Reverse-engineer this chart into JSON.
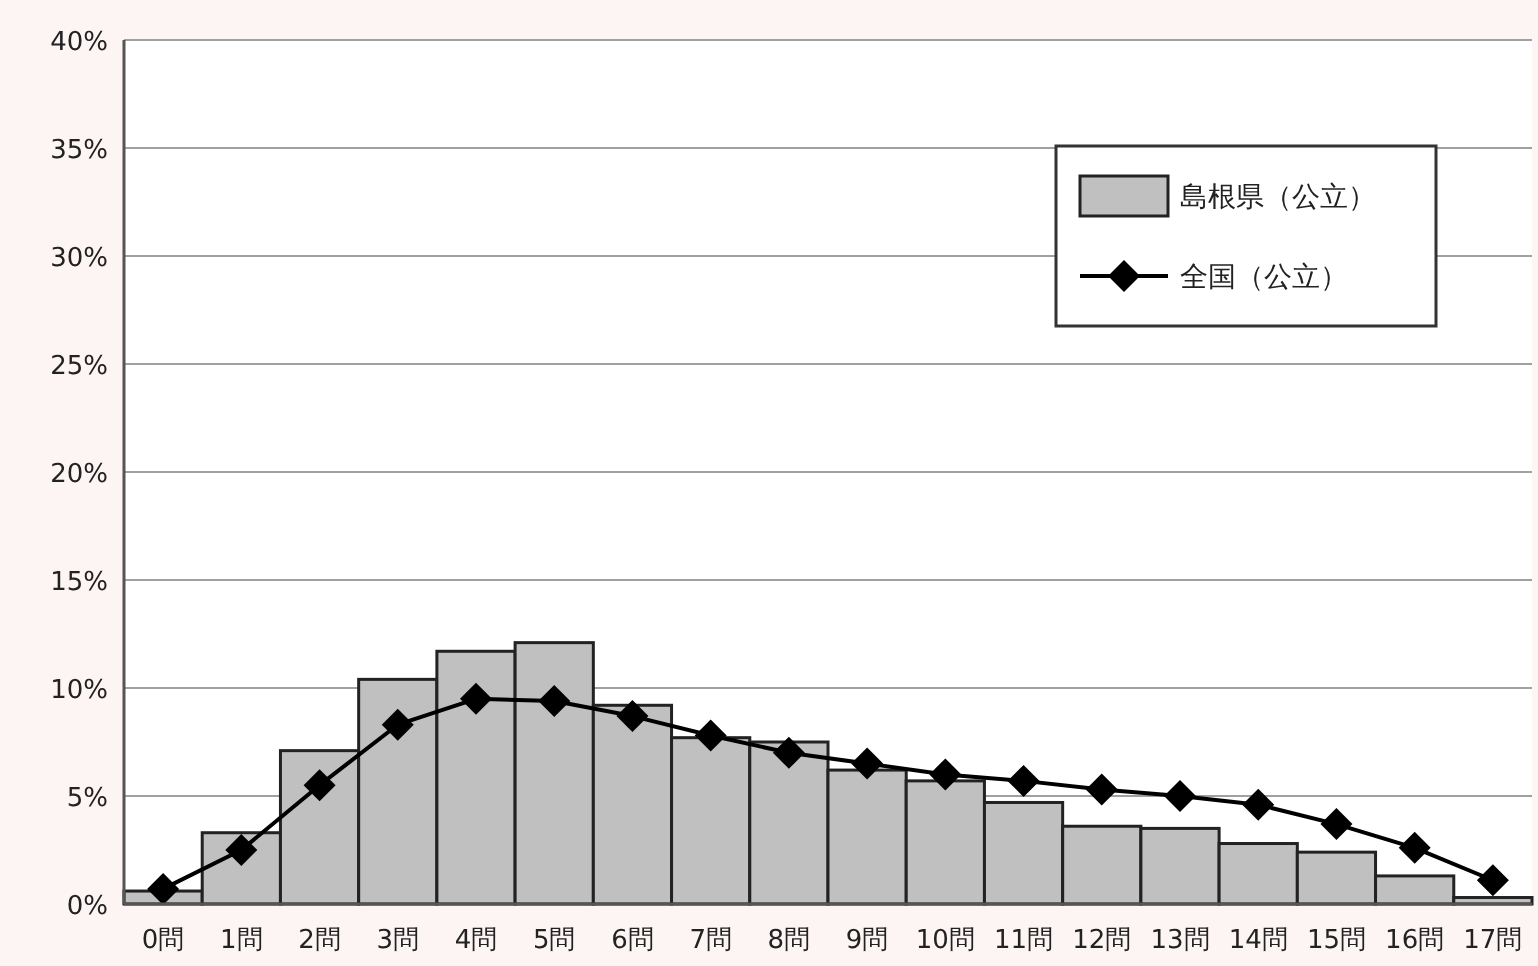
{
  "chart_data": {
    "type": "bar",
    "categories": [
      "0問",
      "1問",
      "2問",
      "3問",
      "4問",
      "5問",
      "6問",
      "7問",
      "8問",
      "9問",
      "10問",
      "11問",
      "12問",
      "13問",
      "14問",
      "15問",
      "16問",
      "17問"
    ],
    "series": [
      {
        "name": "島根県（公立）",
        "color": "#c0c0c0",
        "values": [
          0.6,
          3.3,
          7.1,
          10.4,
          11.7,
          12.1,
          9.2,
          7.7,
          7.5,
          6.2,
          5.7,
          4.7,
          3.6,
          3.5,
          2.8,
          2.4,
          1.3,
          0.3
        ]
      },
      {
        "name": "全国（公立）",
        "type": "line",
        "color": "#000000",
        "marker": "diamond",
        "values": [
          0.7,
          2.5,
          5.5,
          8.3,
          9.5,
          9.4,
          8.7,
          7.8,
          7.0,
          6.5,
          6.0,
          5.7,
          5.3,
          5.0,
          4.6,
          3.7,
          2.6,
          1.1
        ]
      }
    ],
    "ylim": [
      0,
      40
    ],
    "yticks": [
      {
        "value": 0,
        "label": "0%"
      },
      {
        "value": 5,
        "label": "5%"
      },
      {
        "value": 10,
        "label": "10%"
      },
      {
        "value": 15,
        "label": "15%"
      },
      {
        "value": 20,
        "label": "20%"
      },
      {
        "value": 25,
        "label": "25%"
      },
      {
        "value": 30,
        "label": "30%"
      },
      {
        "value": 35,
        "label": "35%"
      },
      {
        "value": 40,
        "label": "40%"
      }
    ],
    "grid": "y",
    "legend": "top right"
  }
}
